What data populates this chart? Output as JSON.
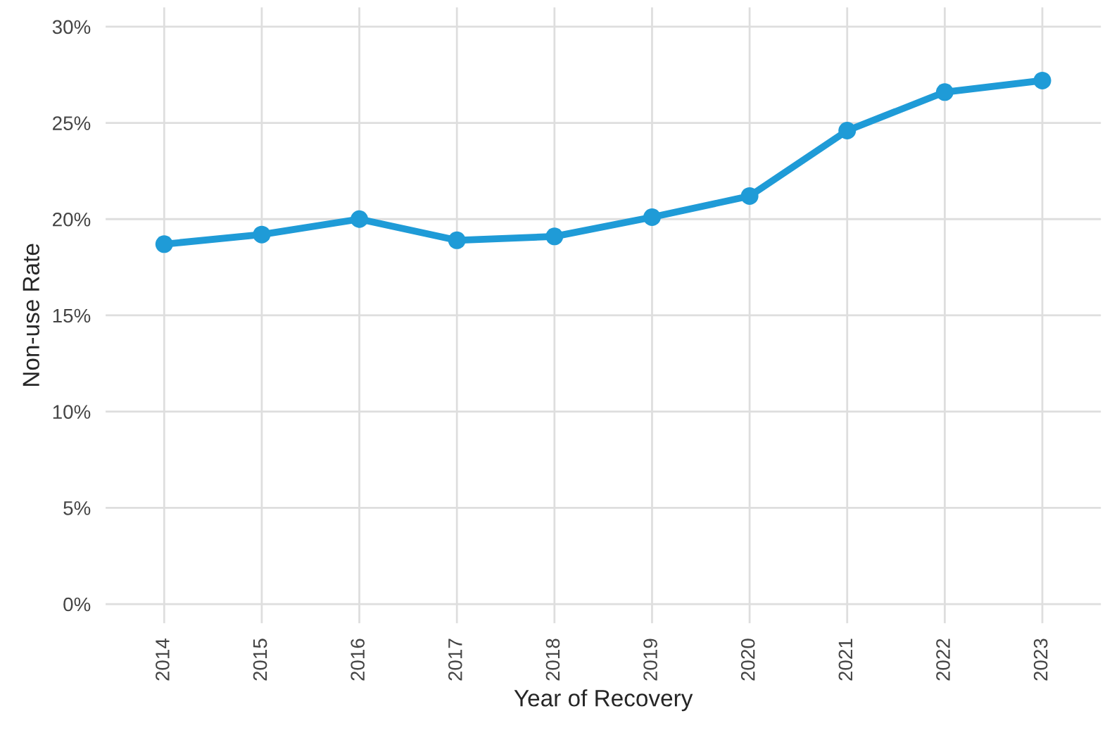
{
  "chart_data": {
    "type": "line",
    "xlabel": "Year of Recovery",
    "ylabel": "Non-use Rate",
    "categories": [
      "2014",
      "2015",
      "2016",
      "2017",
      "2018",
      "2019",
      "2020",
      "2021",
      "2022",
      "2023"
    ],
    "series": [
      {
        "color": "#1f9bd7",
        "values": [
          18.7,
          19.2,
          20.0,
          18.9,
          19.1,
          20.1,
          21.2,
          24.6,
          26.6,
          27.2
        ]
      }
    ],
    "ylim": [
      -1,
      31
    ],
    "yticks": [
      {
        "value": 0,
        "label": "0%"
      },
      {
        "value": 5,
        "label": "5%"
      },
      {
        "value": 10,
        "label": "10%"
      },
      {
        "value": 15,
        "label": "15%"
      },
      {
        "value": 20,
        "label": "20%"
      },
      {
        "value": 25,
        "label": "25%"
      },
      {
        "value": 30,
        "label": "30%"
      }
    ],
    "grid": true,
    "marker": "circle",
    "line_style": "solid"
  }
}
